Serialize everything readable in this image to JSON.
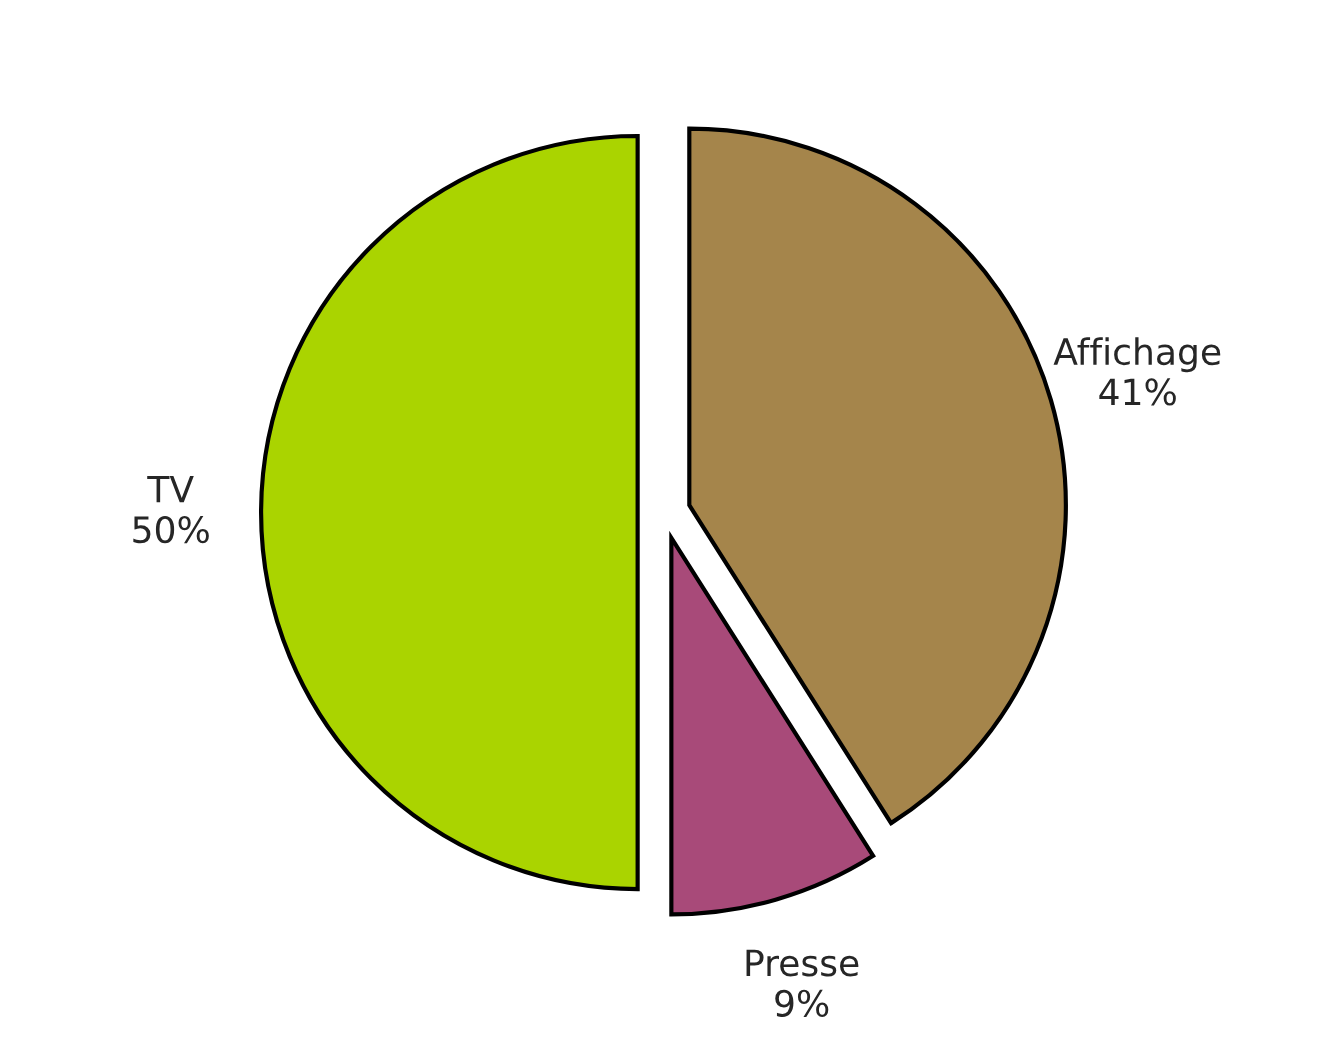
{
  "chart_data": {
    "type": "pie",
    "categories": [
      "Affichage",
      "Presse",
      "TV"
    ],
    "values": [
      41,
      9,
      50
    ],
    "value_labels": [
      "41%",
      "9%",
      "50%"
    ],
    "colors": [
      "#a5854b",
      "#a84a79",
      "#aad400"
    ]
  }
}
